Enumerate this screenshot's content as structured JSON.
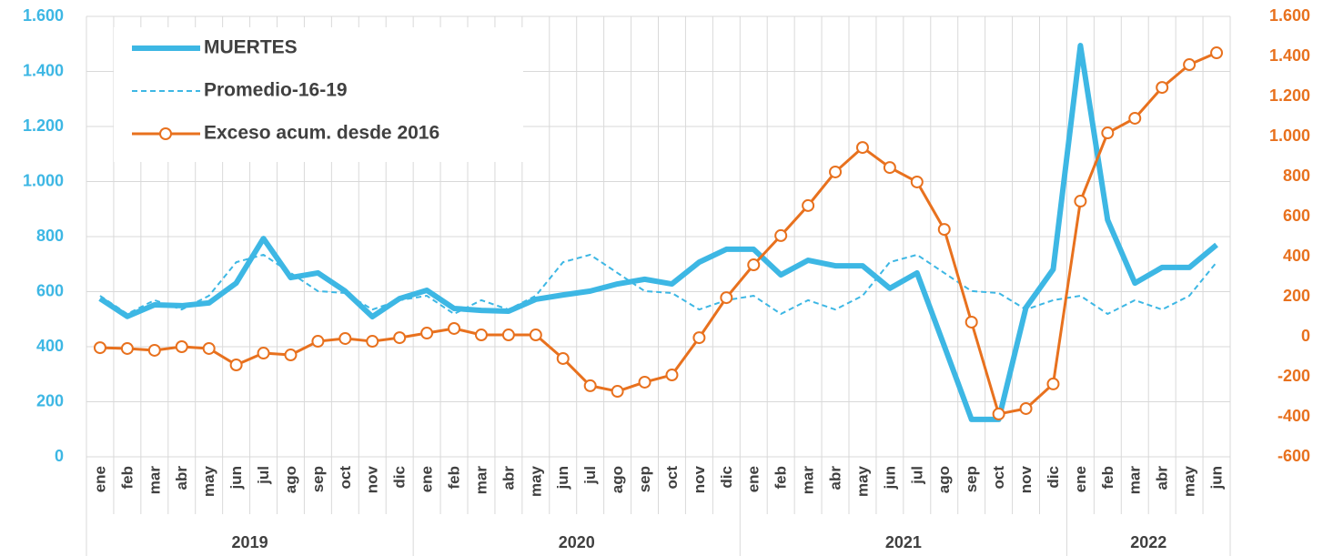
{
  "chart_data": {
    "type": "line",
    "categories": [
      "ene",
      "feb",
      "mar",
      "abr",
      "may",
      "jun",
      "jul",
      "ago",
      "sep",
      "oct",
      "nov",
      "dic",
      "ene",
      "feb",
      "mar",
      "abr",
      "may",
      "jun",
      "jul",
      "ago",
      "sep",
      "oct",
      "nov",
      "dic",
      "ene",
      "feb",
      "mar",
      "abr",
      "may",
      "jun",
      "jul",
      "ago",
      "sep",
      "oct",
      "nov",
      "dic",
      "ene",
      "feb",
      "mar",
      "abr",
      "may",
      "jun"
    ],
    "years": [
      "2019",
      "2020",
      "2021",
      "2022"
    ],
    "ylim": [
      0,
      1600
    ],
    "yticks": [
      0,
      200,
      400,
      600,
      800,
      {
        "value": 1000,
        "label": "1.000"
      },
      {
        "value": 1200,
        "label": "1.200"
      },
      {
        "value": 1400,
        "label": "1.400"
      },
      {
        "value": 1600,
        "label": "1.600"
      }
    ],
    "y2lim": [
      -600,
      1600
    ],
    "y2ticks": [
      -600,
      -400,
      -200,
      0,
      200,
      400,
      600,
      800,
      {
        "value": 1000,
        "label": "1.000"
      },
      {
        "value": 1200,
        "label": "1.200"
      },
      {
        "value": 1400,
        "label": "1.400"
      },
      {
        "value": 1600,
        "label": "1.600"
      }
    ],
    "grid": true,
    "legend": "top-left",
    "series": [
      {
        "name": "MUERTES",
        "color": "#3db7e4",
        "style": "solid",
        "values": [
          575,
          510,
          552,
          549,
          559,
          631,
          793,
          651,
          668,
          602,
          509,
          575,
          605,
          539,
          532,
          529,
          572,
          588,
          602,
          628,
          645,
          628,
          707,
          754,
          754,
          661,
          714,
          694,
          694,
          612,
          668,
          403,
          136,
          136,
          542,
          681,
          1494,
          860,
          631,
          688,
          688,
          770
        ]
      },
      {
        "name": "Promedio-16-19",
        "color": "#3db7e4",
        "style": "dashed",
        "values": [
          585,
          519,
          569,
          535,
          585,
          707,
          734,
          668,
          602,
          595,
          535,
          569,
          585,
          519,
          569,
          535,
          585,
          707,
          734,
          668,
          602,
          595,
          535,
          569,
          585,
          519,
          569,
          535,
          585,
          707,
          734,
          668,
          602,
          595,
          535,
          569,
          585,
          519,
          569,
          535,
          585,
          707
        ]
      },
      {
        "name": "Exceso acum. desde 2016",
        "color": "#e8711e",
        "style": "markers",
        "axis": "y2",
        "values": [
          -55,
          -59,
          -68,
          -50,
          -59,
          -141,
          -82,
          -91,
          -23,
          -9,
          -23,
          -5,
          18,
          41,
          9,
          9,
          9,
          -109,
          -245,
          -273,
          -227,
          -191,
          -5,
          195,
          359,
          505,
          655,
          823,
          945,
          845,
          773,
          536,
          73,
          -386,
          -359,
          -236,
          677,
          1018,
          1091,
          1245,
          1359,
          1418
        ]
      }
    ]
  }
}
